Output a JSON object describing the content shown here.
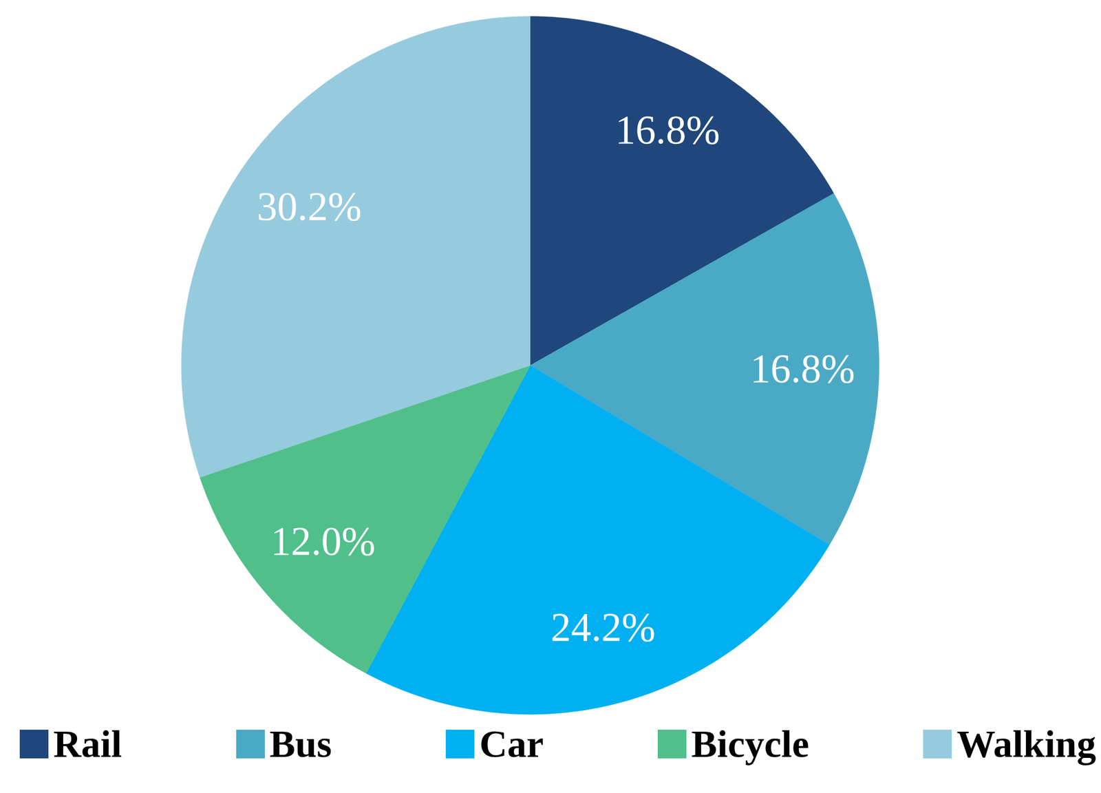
{
  "chart_data": {
    "type": "pie",
    "categories": [
      "Rail",
      "Bus",
      "Car",
      "Bicycle",
      "Walking"
    ],
    "values": [
      16.8,
      16.8,
      24.2,
      12.0,
      30.2
    ],
    "value_labels": [
      "16.8%",
      "16.8%",
      "24.2%",
      "12.0%",
      "30.2%"
    ],
    "colors": [
      "#1f477b",
      "#4aaac6",
      "#00b0f0",
      "#50bf8a",
      "#96cbdd"
    ],
    "data_labels": true,
    "legend": "bottom"
  }
}
